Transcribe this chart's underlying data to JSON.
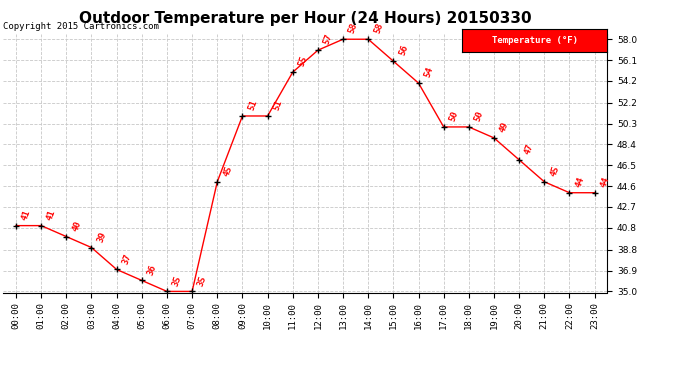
{
  "title": "Outdoor Temperature per Hour (24 Hours) 20150330",
  "copyright": "Copyright 2015 Cartronics.com",
  "legend_label": "Temperature (°F)",
  "hours": [
    0,
    1,
    2,
    3,
    4,
    5,
    6,
    7,
    8,
    9,
    10,
    11,
    12,
    13,
    14,
    15,
    16,
    17,
    18,
    19,
    20,
    21,
    22,
    23
  ],
  "temps": [
    41,
    41,
    40,
    39,
    37,
    36,
    35,
    35,
    45,
    51,
    51,
    55,
    57,
    58,
    58,
    56,
    54,
    50,
    50,
    49,
    47,
    45,
    44,
    44
  ],
  "ylim_min": 35.0,
  "ylim_max": 58.0,
  "yticks": [
    35.0,
    36.9,
    38.8,
    40.8,
    42.7,
    44.6,
    46.5,
    48.4,
    50.3,
    52.2,
    54.2,
    56.1,
    58.0
  ],
  "line_color": "red",
  "marker_color": "black",
  "bg_color": "#ffffff",
  "grid_color": "#c8c8c8",
  "legend_bg": "red",
  "legend_text_color": "white",
  "title_fontsize": 11,
  "annotation_fontsize": 6.5,
  "tick_fontsize": 6.5,
  "copyright_fontsize": 6.5
}
